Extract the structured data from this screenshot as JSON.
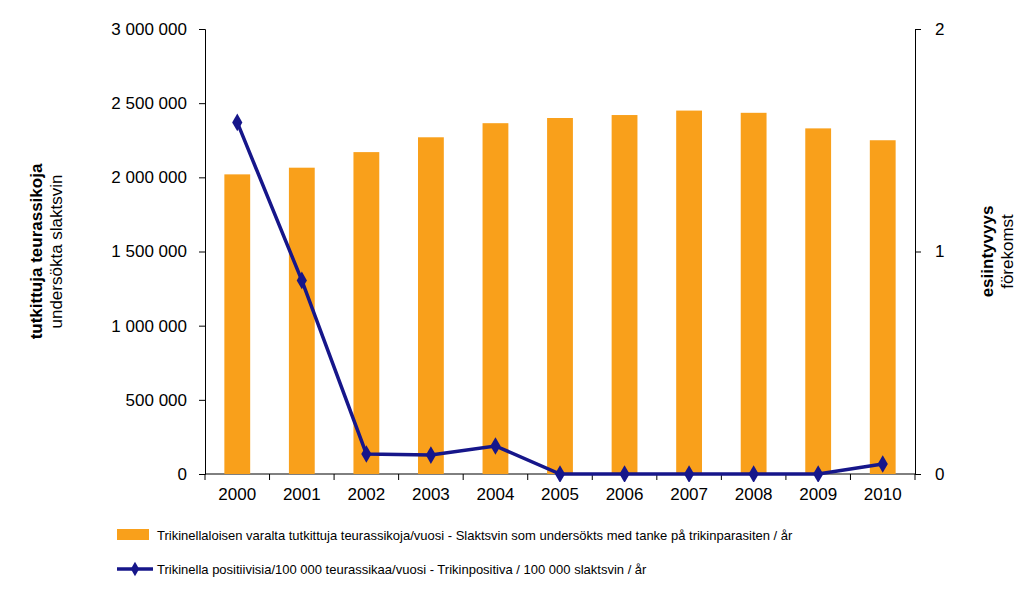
{
  "chart_data": {
    "type": "bar",
    "categories": [
      "2000",
      "2001",
      "2002",
      "2003",
      "2004",
      "2005",
      "2006",
      "2007",
      "2008",
      "2009",
      "2010"
    ],
    "y_label": [
      "tutkittuja teurassikoja",
      "undersökta slaktsvin"
    ],
    "y2_label": [
      "esiintyvyys",
      "förekomst"
    ],
    "ylim": [
      0,
      3000000
    ],
    "yticks": [
      0,
      {
        "value": 500000,
        "label": "500 000"
      },
      {
        "value": 1000000,
        "label": "1 000 000"
      },
      {
        "value": 1500000,
        "label": "1 500 000"
      },
      {
        "value": 2000000,
        "label": "2 000 000"
      },
      {
        "value": 2500000,
        "label": "2 500 000"
      },
      {
        "value": 3000000,
        "label": "3 000 000"
      }
    ],
    "y2lim": [
      0,
      2
    ],
    "y2ticks": [
      0,
      1,
      2
    ],
    "grid": false,
    "legend": "bottom",
    "series": [
      {
        "name": "Trikinellaloisen varalta tutkittuja teurassikoja/vuosi - Slaktsvin som undersökts med tanke på trikinparasiten / år",
        "type": "bar",
        "color": "#f9a01b",
        "values": [
          2020000,
          2065000,
          2170000,
          2270000,
          2365000,
          2400000,
          2420000,
          2450000,
          2435000,
          2330000,
          2250000
        ]
      },
      {
        "name": "Trikinella positiivisia/100 000 teurassikaa/vuosi - Trikinpositiva /  100 000 slaktsvin / år",
        "type": "line",
        "axis": "y2",
        "color": "#16168a",
        "marker": "diamond",
        "line_style": "solid",
        "values": [
          1.58,
          0.87,
          0.09,
          0.085,
          0.126,
          0,
          0,
          0,
          0,
          0,
          0.045
        ]
      }
    ]
  }
}
